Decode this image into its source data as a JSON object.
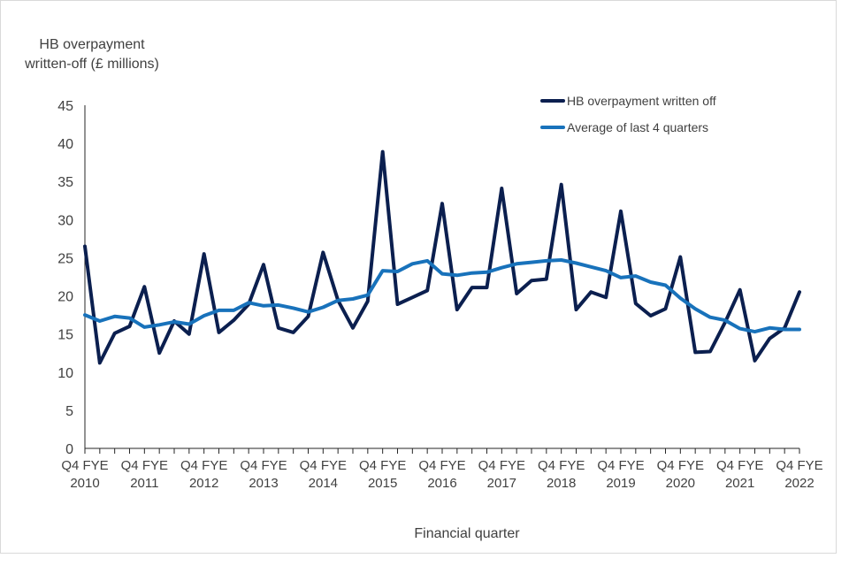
{
  "chart_data": {
    "type": "line",
    "title": "",
    "ylabel_lines": [
      "HB overpayment",
      "written-off (£ millions)"
    ],
    "xlabel": "Financial quarter",
    "ylim": [
      0,
      45
    ],
    "yticks": [
      0,
      5,
      10,
      15,
      20,
      25,
      30,
      35,
      40,
      45
    ],
    "x_tick_labels": [
      {
        "index": 0,
        "line1": "Q4 FYE",
        "line2": "2010"
      },
      {
        "index": 4,
        "line1": "Q4 FYE",
        "line2": "2011"
      },
      {
        "index": 8,
        "line1": "Q4 FYE",
        "line2": "2012"
      },
      {
        "index": 12,
        "line1": "Q4 FYE",
        "line2": "2013"
      },
      {
        "index": 16,
        "line1": "Q4 FYE",
        "line2": "2014"
      },
      {
        "index": 20,
        "line1": "Q4 FYE",
        "line2": "2015"
      },
      {
        "index": 24,
        "line1": "Q4 FYE",
        "line2": "2016"
      },
      {
        "index": 28,
        "line1": "Q4 FYE",
        "line2": "2017"
      },
      {
        "index": 32,
        "line1": "Q4 FYE",
        "line2": "2018"
      },
      {
        "index": 36,
        "line1": "Q4 FYE",
        "line2": "2019"
      },
      {
        "index": 40,
        "line1": "Q4 FYE",
        "line2": "2020"
      },
      {
        "index": 44,
        "line1": "Q4 FYE",
        "line2": "2021"
      },
      {
        "index": 48,
        "line1": "Q4 FYE",
        "line2": "2022"
      }
    ],
    "legend_position": "top-right",
    "series": [
      {
        "name": "HB overpayment written off",
        "color": "#0b1f4f",
        "values": [
          26.5,
          11.2,
          15.1,
          16.0,
          21.2,
          12.5,
          16.7,
          15.0,
          25.5,
          15.2,
          16.8,
          18.9,
          24.1,
          15.8,
          15.2,
          17.3,
          25.7,
          19.4,
          15.8,
          19.3,
          38.9,
          18.9,
          19.8,
          20.7,
          32.1,
          18.2,
          21.1,
          21.1,
          34.1,
          20.3,
          22.0,
          22.2,
          34.6,
          18.2,
          20.5,
          19.8,
          31.1,
          19.0,
          17.4,
          18.3,
          25.1,
          12.6,
          12.7,
          16.5,
          20.8,
          11.5,
          14.4,
          15.8,
          20.5
        ]
      },
      {
        "name": "Average of last 4 quarters",
        "color": "#1872bb",
        "values": [
          17.5,
          16.7,
          17.3,
          17.1,
          15.9,
          16.2,
          16.6,
          16.3,
          17.4,
          18.1,
          18.1,
          19.1,
          18.7,
          18.8,
          18.4,
          17.9,
          18.5,
          19.4,
          19.6,
          20.1,
          23.3,
          23.2,
          24.2,
          24.6,
          22.9,
          22.7,
          23.0,
          23.1,
          23.7,
          24.2,
          24.4,
          24.6,
          24.7,
          24.3,
          23.8,
          23.3,
          22.4,
          22.6,
          21.8,
          21.4,
          19.7,
          18.3,
          17.2,
          16.8,
          15.7,
          15.3,
          15.8,
          15.6,
          15.6
        ]
      }
    ]
  }
}
